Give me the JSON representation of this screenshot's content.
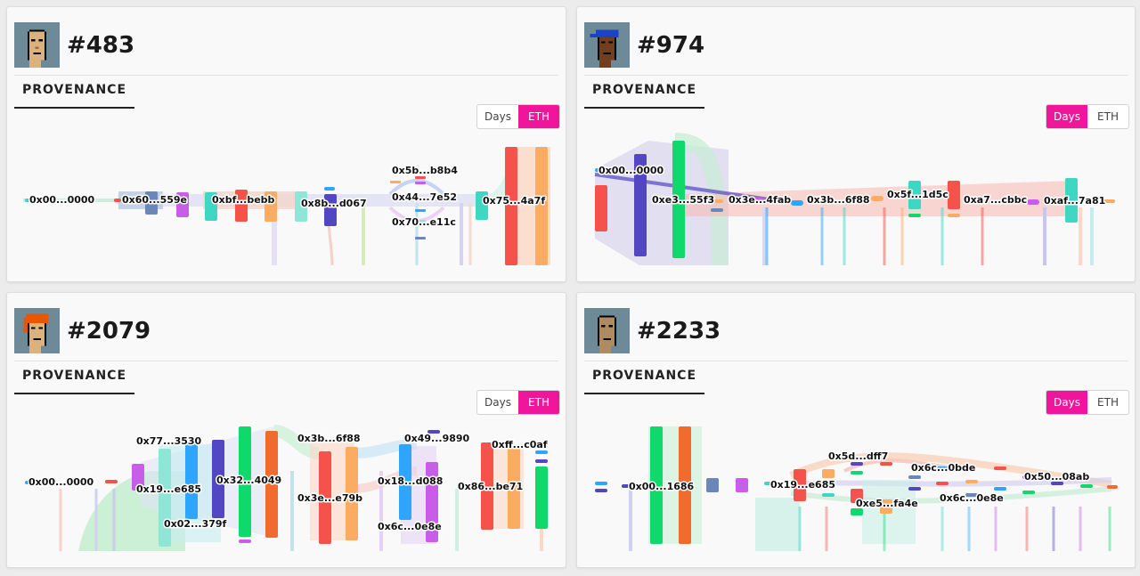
{
  "cards": [
    {
      "id": "#483",
      "section_title": "PROVENANCE",
      "toggle": {
        "days_label": "Days",
        "eth_label": "ETH",
        "active": "ETH"
      },
      "avatar_icon": "punk-avatar-icon",
      "labels": [
        "0x00...0000",
        "0x60...559e",
        "0xbf...bebb",
        "0x8b...d067",
        "0x5b...b8b4",
        "0x44...7e52",
        "0x70...e11c",
        "0x75...4a7f"
      ]
    },
    {
      "id": "#974",
      "section_title": "PROVENANCE",
      "toggle": {
        "days_label": "Days",
        "eth_label": "ETH",
        "active": "Days"
      },
      "avatar_icon": "punk-avatar-bandana-icon",
      "labels": [
        "0x00...0000",
        "0xe3...55f3",
        "0x3e...4fab",
        "0x3b...6f88",
        "0x5f...1d5c",
        "0xa7...cbbc",
        "0xaf...7a81"
      ]
    },
    {
      "id": "#2079",
      "section_title": "PROVENANCE",
      "toggle": {
        "days_label": "Days",
        "eth_label": "ETH",
        "active": "ETH"
      },
      "avatar_icon": "punk-avatar-redhair-icon",
      "labels": [
        "0x00...0000",
        "0x77...3530",
        "0x19...e685",
        "0x02...379f",
        "0x32...4049",
        "0x3b...6f88",
        "0x3e...e79b",
        "0x49...9890",
        "0x18...d088",
        "0x6c...0e8e",
        "0xff...c0af",
        "0x86...be71"
      ]
    },
    {
      "id": "#2233",
      "section_title": "PROVENANCE",
      "toggle": {
        "days_label": "Days",
        "eth_label": "ETH",
        "active": "Days"
      },
      "avatar_icon": "punk-avatar-icon",
      "labels": [
        "0x00...1686",
        "0x19...e685",
        "0x5d...dff7",
        "0xe5...fa4e",
        "0x6c...0bde",
        "0x6c...0e8e",
        "0x50...08ab"
      ]
    }
  ],
  "colors": {
    "accent": "#f0169c",
    "node_red": "#f4524a",
    "node_orange": "#fcab63",
    "node_green": "#10d96c",
    "node_teal": "#3fd6c3",
    "node_indigo": "#5246c2",
    "node_blue": "#2ea6ff",
    "node_purple": "#c85ee8",
    "node_slate": "#6b86b8"
  }
}
